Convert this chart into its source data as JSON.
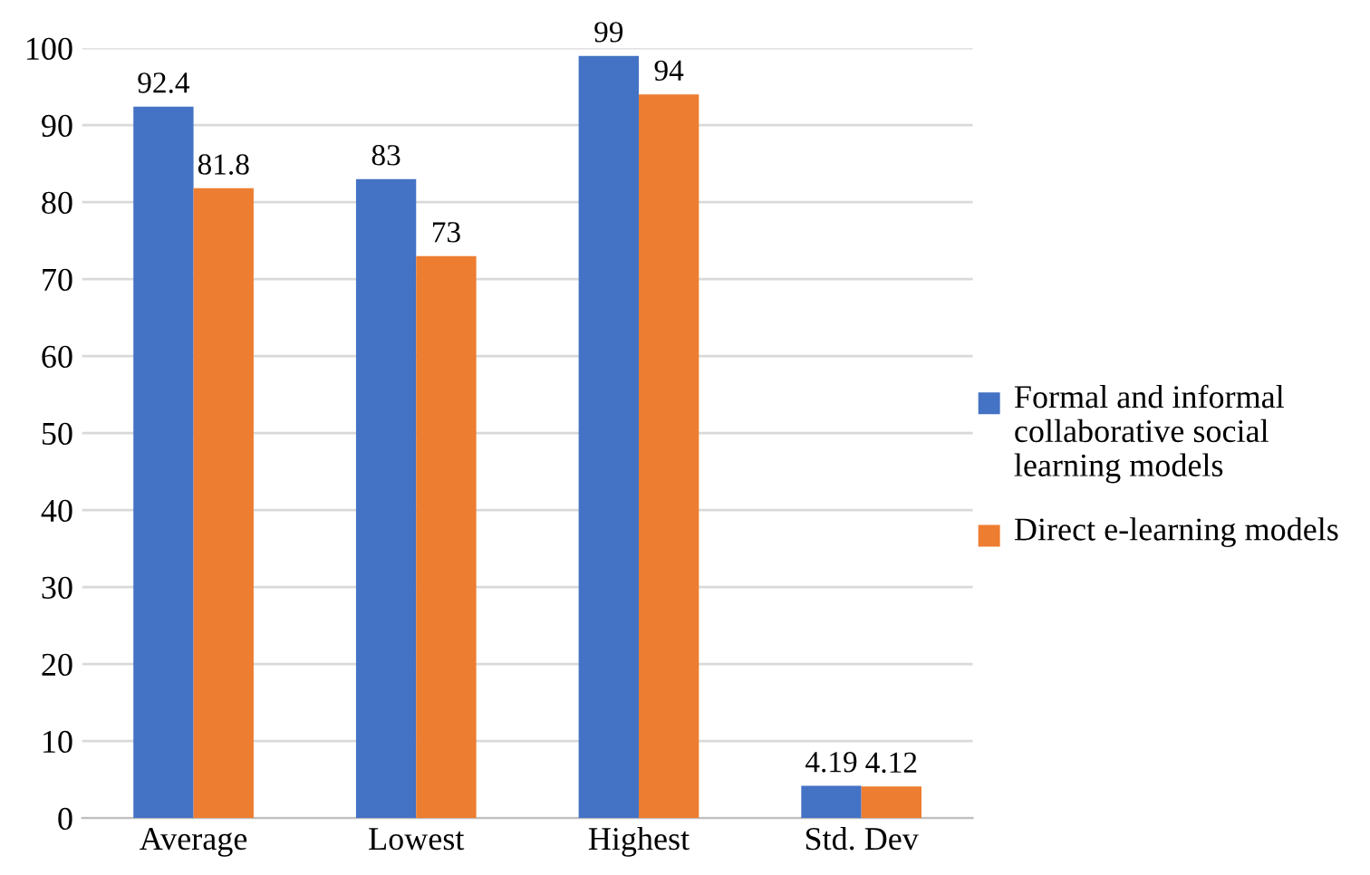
{
  "chart_data": {
    "type": "bar",
    "categories": [
      "Average",
      "Lowest",
      "Highest",
      "Std. Dev"
    ],
    "series": [
      {
        "name": "Formal and informal collaborative social learning models",
        "color": "#4472c4",
        "values": [
          92.4,
          83,
          99,
          4.19
        ]
      },
      {
        "name": "Direct e-learning models",
        "color": "#ed7d31",
        "values": [
          81.8,
          73,
          94,
          4.12
        ]
      }
    ],
    "ylim": [
      0,
      100
    ],
    "yticks": [
      0,
      10,
      20,
      30,
      40,
      50,
      60,
      70,
      80,
      90,
      100
    ],
    "grid": "y",
    "legend": "right",
    "data_labels": true
  }
}
